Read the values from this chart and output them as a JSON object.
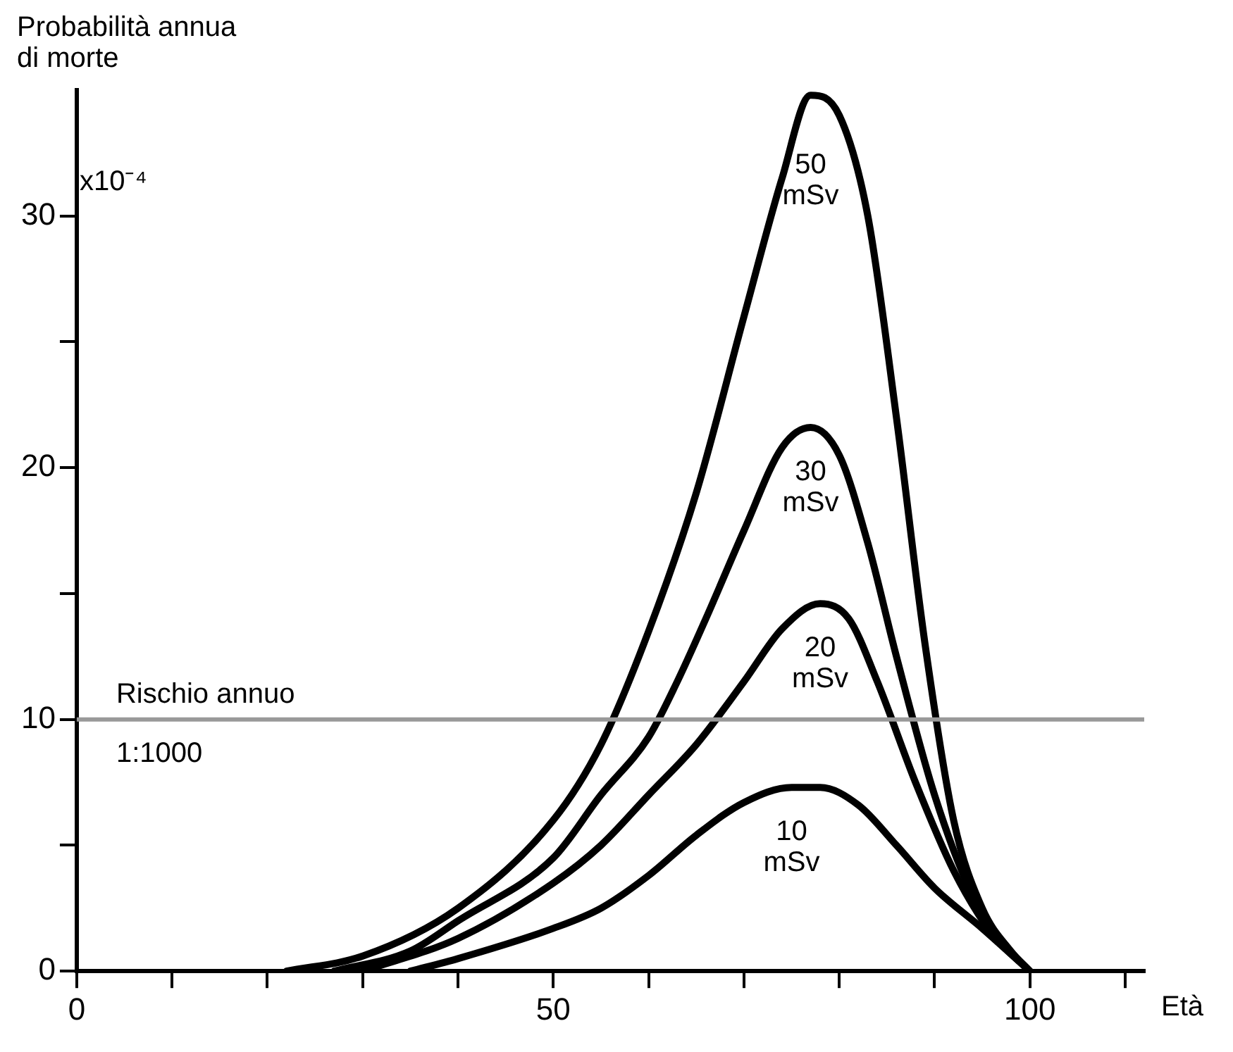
{
  "chart_data": {
    "type": "line",
    "xlabel": "Età",
    "ylabel": "Probabilità annua di morte",
    "xlim": [
      0,
      112
    ],
    "ylim": [
      0,
      35
    ],
    "xticks": [
      0,
      {
        "value": 10,
        "label": null
      },
      {
        "value": 20,
        "label": null
      },
      {
        "value": 30,
        "label": null
      },
      {
        "value": 40,
        "label": null
      },
      50,
      {
        "value": 60,
        "label": null
      },
      {
        "value": 70,
        "label": null
      },
      {
        "value": 80,
        "label": null
      },
      {
        "value": 90,
        "label": null
      },
      100,
      {
        "value": 110,
        "label": null
      }
    ],
    "yticks": [
      0,
      {
        "value": 5,
        "label": null
      },
      10,
      {
        "value": 15,
        "label": null
      },
      20,
      {
        "value": 25,
        "label": null
      },
      30
    ],
    "annotations": [
      "x10⁻⁴"
    ],
    "grid": false,
    "legend": false,
    "line_style": "solid",
    "series": [
      {
        "name": "50 mSv",
        "color": "#000000",
        "x": [
          22,
          30,
          40,
          50,
          55,
          60,
          65,
          70,
          74,
          77,
          80,
          83,
          86,
          89,
          92,
          95,
          98,
          100
        ],
        "values": [
          0,
          0.6,
          2.5,
          6,
          9,
          13.5,
          19,
          26,
          31.5,
          34.8,
          34,
          30,
          22,
          13,
          6,
          2.5,
          0.8,
          0
        ]
      },
      {
        "name": "30 mSv",
        "color": "#000000",
        "x": [
          27,
          35,
          40,
          50,
          55,
          60,
          63,
          66,
          70,
          74,
          77,
          80,
          83,
          86,
          90,
          94,
          97,
          100
        ],
        "values": [
          0,
          0.8,
          2,
          4.5,
          7,
          9.3,
          11.5,
          14,
          17.5,
          20.8,
          21.6,
          20.5,
          17,
          12.5,
          7,
          3,
          1.2,
          0
        ]
      },
      {
        "name": "20 mSv",
        "color": "#000000",
        "x": [
          30,
          40,
          50,
          55,
          60,
          65,
          70,
          74,
          78,
          81,
          84,
          88,
          92,
          96,
          100
        ],
        "values": [
          0,
          1.3,
          3.5,
          5,
          7,
          9,
          11.5,
          13.6,
          14.6,
          14,
          11.5,
          7.5,
          4,
          1.5,
          0
        ]
      },
      {
        "name": "10 mSv",
        "color": "#000000",
        "x": [
          35,
          40,
          50,
          55,
          60,
          65,
          70,
          75,
          78,
          82,
          86,
          90,
          95,
          100
        ],
        "values": [
          0,
          0.5,
          1.7,
          2.5,
          3.8,
          5.4,
          6.7,
          7.3,
          7.3,
          6.6,
          5,
          3.3,
          1.7,
          0
        ]
      }
    ],
    "ref_lines": [
      {
        "axis": "y",
        "value": 10,
        "label": "Rischio annuo 1:1000",
        "color": "#999999"
      }
    ]
  }
}
